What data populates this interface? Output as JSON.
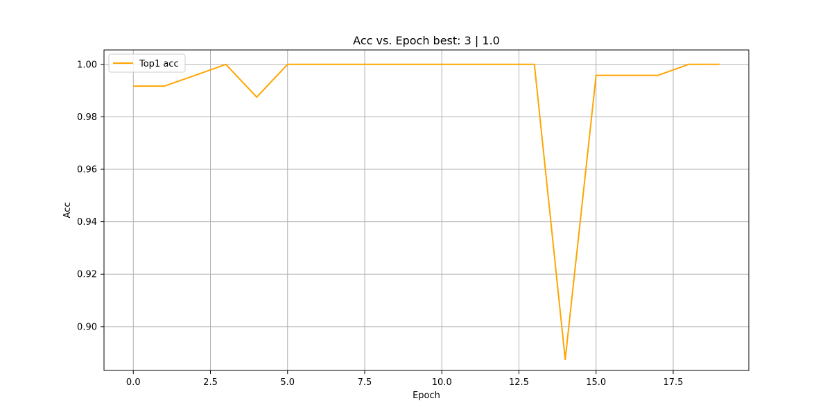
{
  "chart_data": {
    "type": "line",
    "title": "Acc vs. Epoch best: 3 | 1.0",
    "xlabel": "Epoch",
    "ylabel": "Acc",
    "xlim": [
      -0.95,
      19.95
    ],
    "ylim": [
      0.8833,
      1.0055
    ],
    "grid": true,
    "legend_position": "top-left",
    "x_ticks": [
      0.0,
      2.5,
      5.0,
      7.5,
      10.0,
      12.5,
      15.0,
      17.5
    ],
    "x_tick_labels": [
      "0.0",
      "2.5",
      "5.0",
      "7.5",
      "10.0",
      "12.5",
      "15.0",
      "17.5"
    ],
    "y_ticks": [
      0.9,
      0.92,
      0.94,
      0.96,
      0.98,
      1.0
    ],
    "y_tick_labels": [
      "0.90",
      "0.92",
      "0.94",
      "0.96",
      "0.98",
      "1.00"
    ],
    "series": [
      {
        "name": "Top1 acc",
        "color": "#ffa500",
        "x": [
          0,
          1,
          2,
          3,
          4,
          5,
          6,
          7,
          8,
          9,
          10,
          11,
          12,
          13,
          14,
          15,
          16,
          17,
          18,
          19
        ],
        "values": [
          0.9917,
          0.9917,
          0.9958,
          1.0,
          0.9875,
          1.0,
          1.0,
          1.0,
          1.0,
          1.0,
          1.0,
          1.0,
          1.0,
          1.0,
          0.8875,
          0.9958,
          0.9958,
          0.9958,
          1.0,
          1.0
        ]
      }
    ]
  }
}
